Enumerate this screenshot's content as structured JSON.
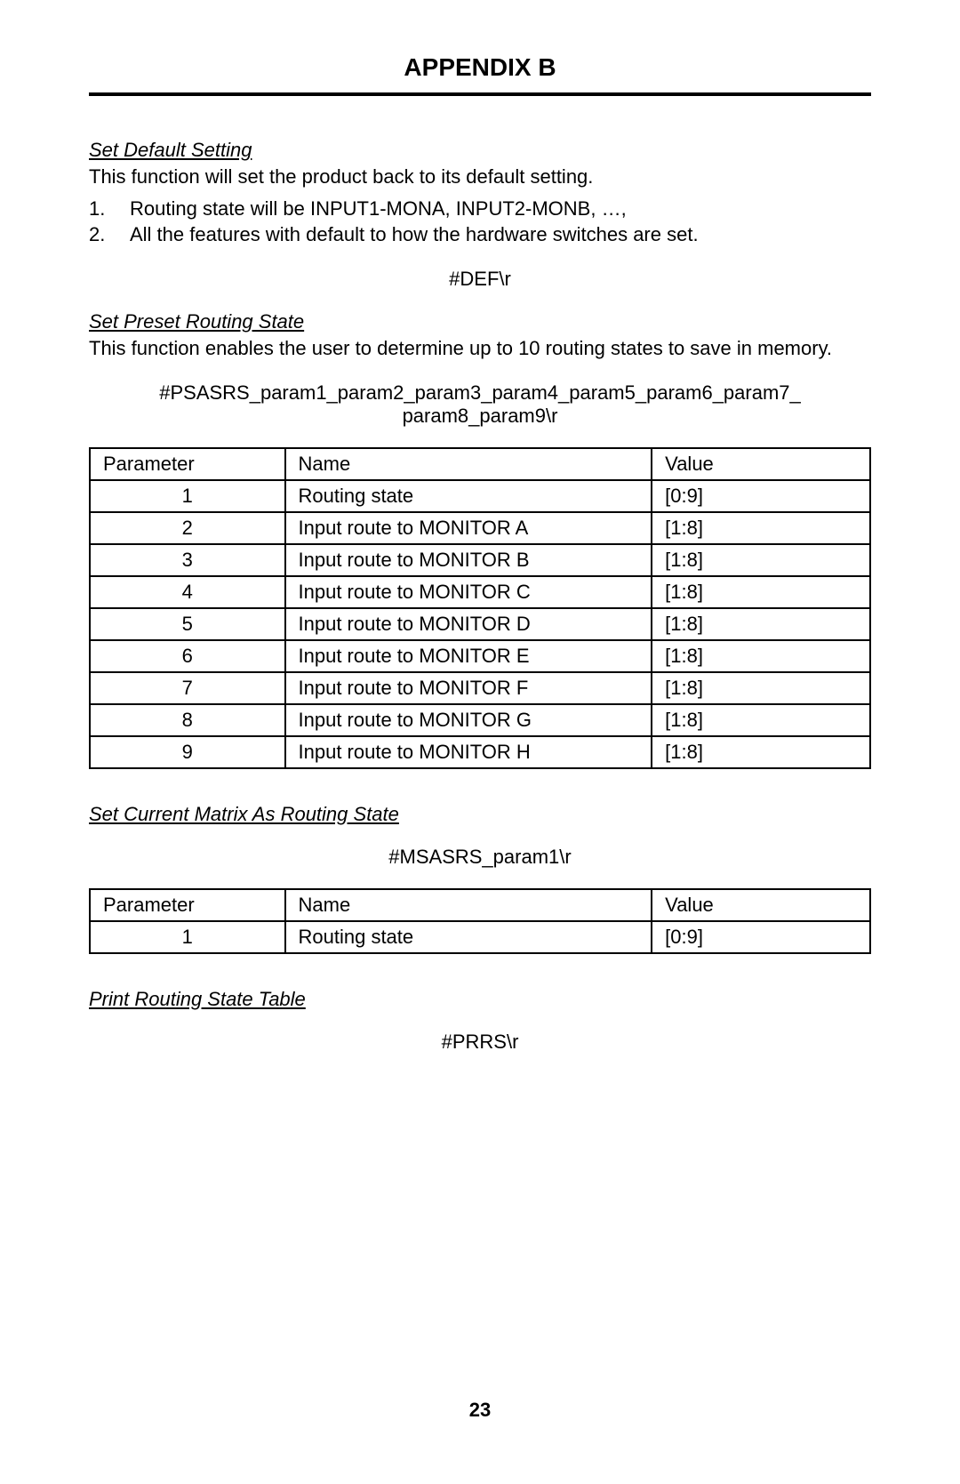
{
  "title": "APPENDIX B",
  "page_number": "23",
  "sections": {
    "set_default": {
      "heading": "Set Default Setting",
      "desc": "This function will set the product back to its default setting.",
      "items": [
        "Routing state will be INPUT1-MONA, INPUT2-MONB, …,",
        "All the features with default to how the hardware switches are set."
      ],
      "command": "#DEF\\r"
    },
    "set_preset": {
      "heading": "Set Preset Routing State",
      "desc": "This function enables the user to determine up to 10 routing states to save in memory.",
      "command_line1": "#PSASRS_param1_param2_param3_param4_param5_param6_param7_",
      "command_line2": "param8_param9\\r",
      "table": {
        "columns": [
          "Parameter",
          "Name",
          "Value"
        ],
        "rows": [
          [
            "1",
            "Routing state",
            "[0:9]"
          ],
          [
            "2",
            "Input route to MONITOR A",
            "[1:8]"
          ],
          [
            "3",
            "Input route to MONITOR B",
            "[1:8]"
          ],
          [
            "4",
            "Input route to MONITOR C",
            "[1:8]"
          ],
          [
            "5",
            "Input route to MONITOR D",
            "[1:8]"
          ],
          [
            "6",
            "Input route to MONITOR E",
            "[1:8]"
          ],
          [
            "7",
            "Input route to MONITOR F",
            "[1:8]"
          ],
          [
            "8",
            "Input route to MONITOR G",
            "[1:8]"
          ],
          [
            "9",
            "Input route to MONITOR H",
            "[1:8]"
          ]
        ]
      }
    },
    "set_current": {
      "heading": "Set Current Matrix As Routing State",
      "command": "#MSASRS_param1\\r",
      "table": {
        "columns": [
          "Parameter",
          "Name",
          "Value"
        ],
        "rows": [
          [
            "1",
            "Routing state",
            "[0:9]"
          ]
        ]
      }
    },
    "print_table": {
      "heading": "Print Routing State Table",
      "command": "#PRRS\\r"
    }
  }
}
